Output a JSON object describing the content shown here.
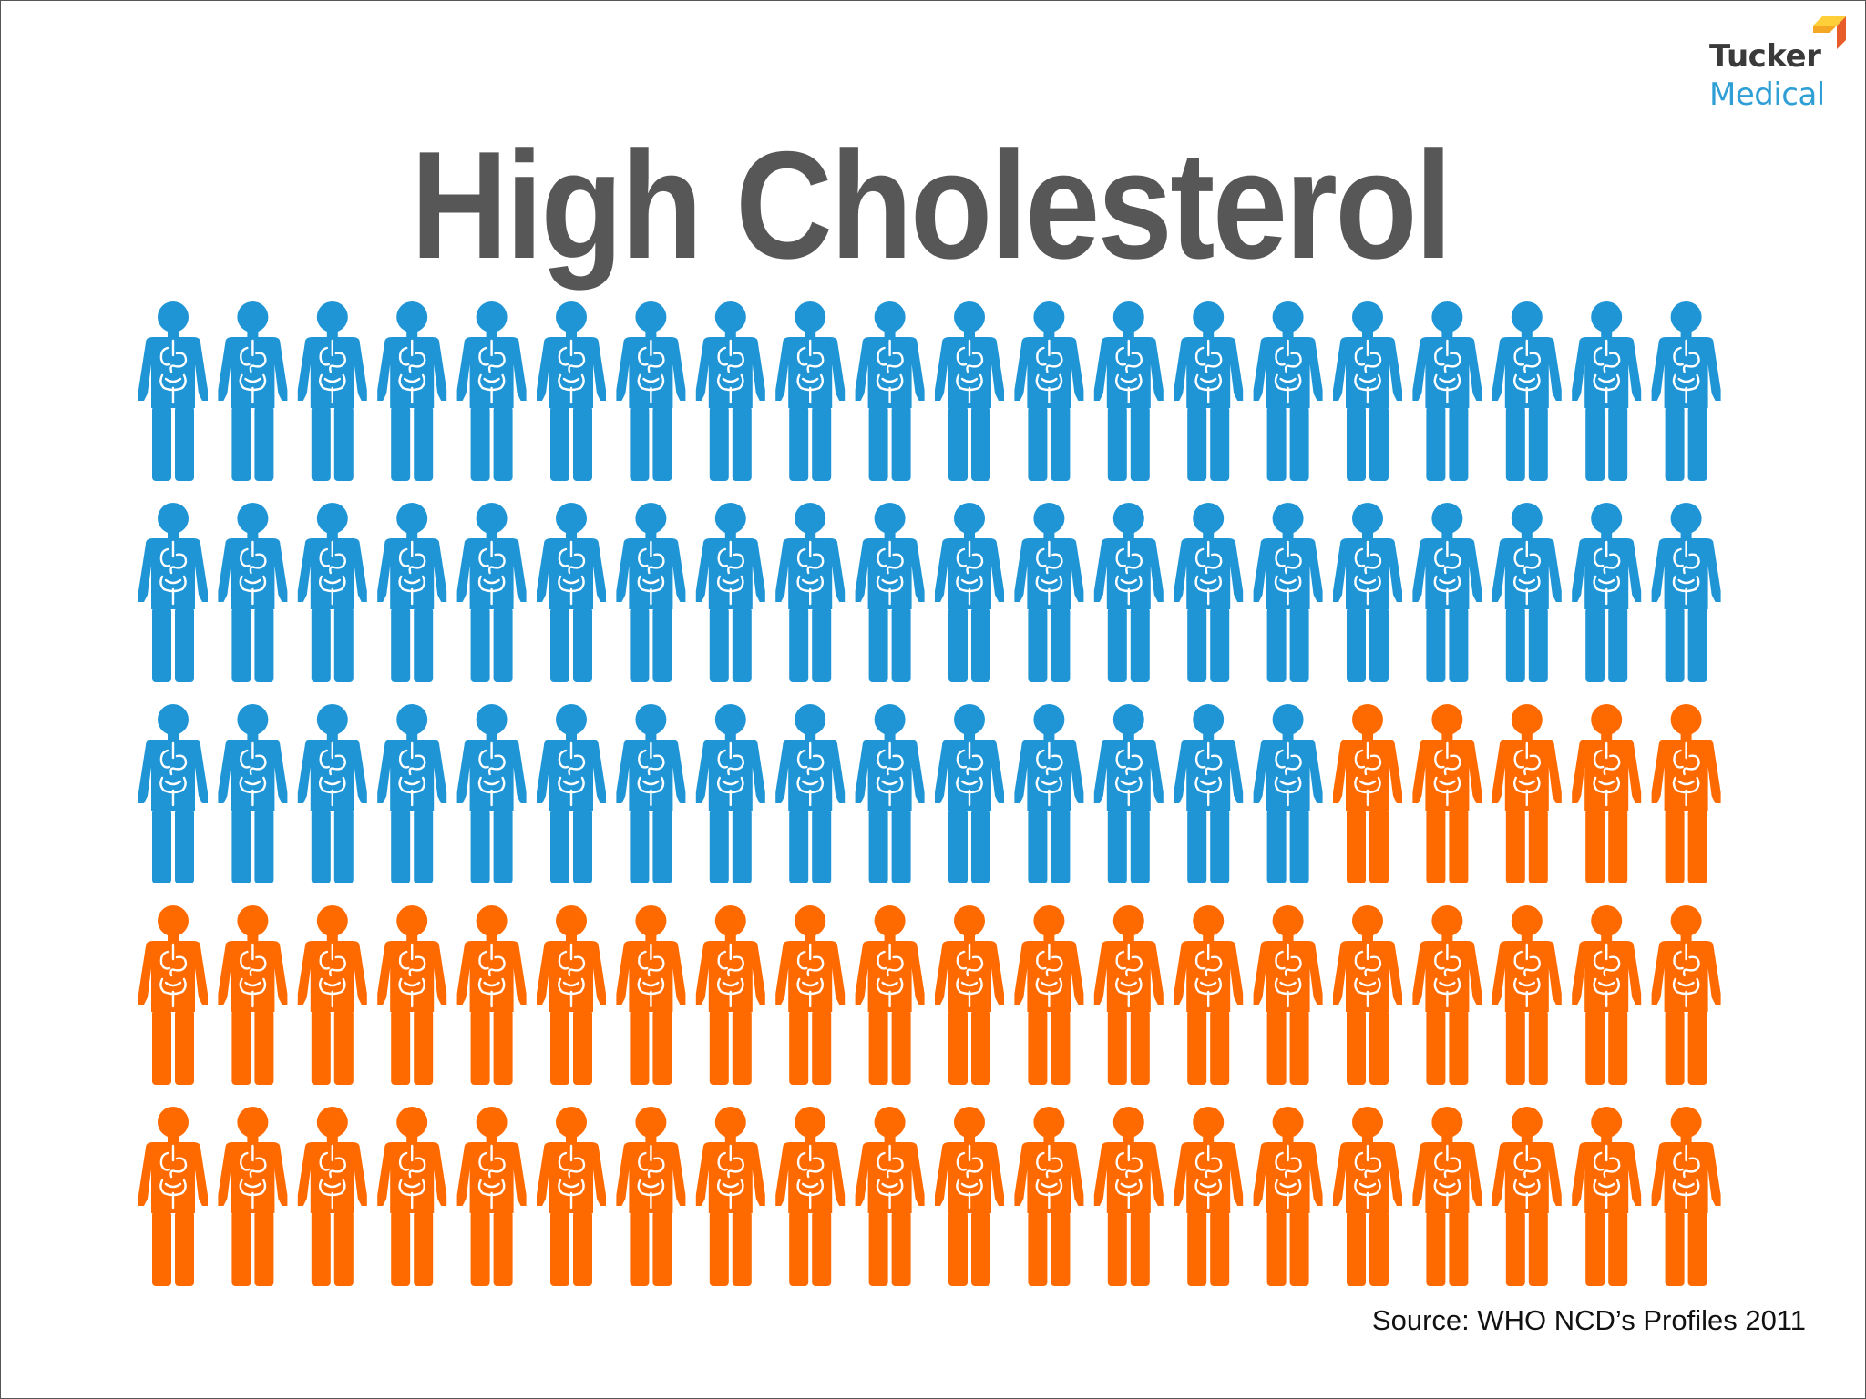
{
  "title": "High Cholesterol",
  "source": "Source: WHO NCD’s Profiles 2011",
  "logo": {
    "line1": "Tucker",
    "line2": "Medical",
    "colors": {
      "line1": "#3a3a3a",
      "line2": "#2f9fd6",
      "mark": [
        "#f5a623",
        "#e85c2a",
        "#2f9fd6",
        "#7ac143"
      ]
    }
  },
  "colors": {
    "title": "#575757",
    "text": "#111111",
    "unaffected": "#1f95d6",
    "affected": "#ff6a00"
  },
  "chart_data": {
    "type": "pictograph",
    "icon": "person-with-organs-icon",
    "rows": 5,
    "columns": 20,
    "total": 100,
    "categories": [
      "blue",
      "orange"
    ],
    "values": [
      55,
      45
    ]
  }
}
